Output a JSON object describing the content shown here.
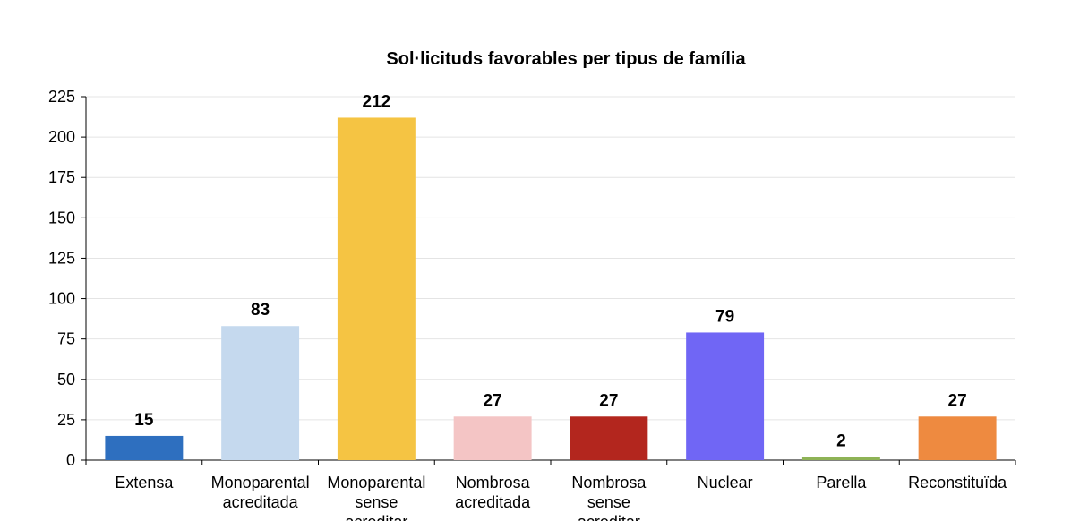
{
  "chart_data": {
    "type": "bar",
    "title": "Sol·licituds favorables per tipus de família",
    "xlabel": "",
    "ylabel": "",
    "categories": [
      [
        "Extensa"
      ],
      [
        "Monoparental",
        "acreditada"
      ],
      [
        "Monoparental",
        "sense",
        "acreditar"
      ],
      [
        "Nombrosa",
        "acreditada"
      ],
      [
        "Nombrosa",
        "sense",
        "acreditar"
      ],
      [
        "Nuclear"
      ],
      [
        "Parella"
      ],
      [
        "Reconstituïda"
      ]
    ],
    "values": [
      15,
      83,
      212,
      27,
      27,
      79,
      2,
      27
    ],
    "data_labels": [
      "15",
      "83",
      "212",
      "27",
      "27",
      "79",
      "2",
      "27"
    ],
    "colors": [
      "#2e6fbf",
      "#c5d9ee",
      "#f5c443",
      "#f4c5c5",
      "#b3261e",
      "#7066f5",
      "#8eb356",
      "#ee8a40"
    ],
    "ylim": [
      0,
      225
    ],
    "yticks": [
      0,
      25,
      50,
      75,
      100,
      125,
      150,
      175,
      200,
      225
    ],
    "grid": true,
    "legend": "none"
  }
}
